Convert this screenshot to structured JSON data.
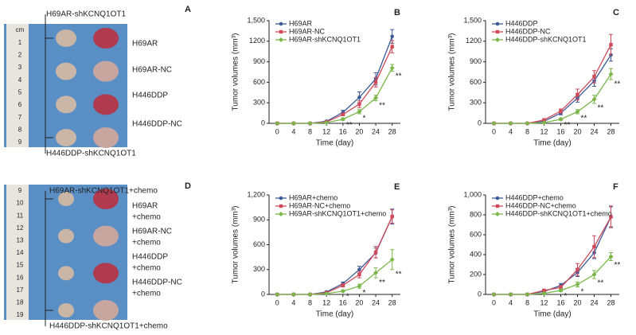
{
  "photos": [
    {
      "panel": "A",
      "top": "H69AR-shKCNQ1OT1",
      "bottom": "H446DDP-shKCNQ1OT1",
      "labels": [
        [
          "H69AR"
        ],
        [
          "H69AR-NC"
        ],
        [
          "H446DDP"
        ],
        [
          "H446DDP-NC"
        ]
      ],
      "ruler": [
        "cm",
        "1",
        "2",
        "3",
        "4",
        "5",
        "6",
        "7",
        "8",
        "9"
      ]
    },
    {
      "panel": "D",
      "top": "H69AR-shKCNQ1OT1+chemo",
      "bottom": "H446DDP-shKCNQ1OT1+chemo",
      "labels": [
        [
          "H69AR",
          "+chemo"
        ],
        [
          "H69AR-NC",
          "+chemo"
        ],
        [
          "H446DDP",
          "+chemo"
        ],
        [
          "H446DDP-NC",
          "+chemo"
        ]
      ],
      "ruler": [
        "9",
        "10",
        "11",
        "12",
        "13",
        "14",
        "15",
        "16",
        "17",
        "18",
        "19"
      ]
    }
  ],
  "chart_data": [
    {
      "type": "line",
      "panel": "B",
      "xlabel": "Time (day)",
      "ylabel": "Tumor volumes (mm³)",
      "x": [
        0,
        4,
        8,
        12,
        16,
        20,
        24,
        28
      ],
      "xlim": [
        -2,
        30
      ],
      "xticks": [
        0,
        4,
        8,
        12,
        16,
        20,
        24,
        28
      ],
      "ylim": [
        0,
        1500
      ],
      "yticks": [
        0,
        300,
        600,
        900,
        1200,
        {
          "value": 1500,
          "label": "1,500"
        }
      ],
      "series": [
        {
          "name": "H69AR",
          "color": "#3d5a98",
          "values": [
            0,
            0,
            0,
            30,
            160,
            380,
            650,
            1270
          ],
          "errors": [
            0,
            0,
            0,
            10,
            30,
            80,
            90,
            100
          ]
        },
        {
          "name": "H69AR-NC",
          "color": "#d04a5a",
          "values": [
            0,
            0,
            0,
            20,
            130,
            280,
            600,
            1120
          ],
          "errors": [
            0,
            0,
            0,
            10,
            20,
            50,
            70,
            90
          ]
        },
        {
          "name": "H69AR-shKCNQ1OT1",
          "color": "#7ab648",
          "values": [
            0,
            0,
            0,
            10,
            60,
            170,
            370,
            810
          ],
          "errors": [
            0,
            0,
            0,
            5,
            15,
            30,
            40,
            50
          ]
        }
      ],
      "annotations": [
        {
          "x": 16,
          "text": "**"
        },
        {
          "x": 20,
          "text": "*"
        },
        {
          "x": 24,
          "text": "**"
        },
        {
          "x": 28,
          "text": "**"
        }
      ]
    },
    {
      "type": "line",
      "panel": "C",
      "xlabel": "Time (day)",
      "ylabel": "Tumor volumes (mm³)",
      "x": [
        0,
        4,
        8,
        12,
        16,
        20,
        24,
        28
      ],
      "xlim": [
        -2,
        30
      ],
      "xticks": [
        0,
        4,
        8,
        12,
        16,
        20,
        24,
        28
      ],
      "ylim": [
        0,
        1500
      ],
      "yticks": [
        0,
        300,
        600,
        900,
        1200,
        {
          "value": 1500,
          "label": "1,500"
        }
      ],
      "series": [
        {
          "name": "H446DDP",
          "color": "#3d5a98",
          "values": [
            0,
            0,
            0,
            30,
            150,
            370,
            620,
            1000
          ],
          "errors": [
            0,
            0,
            0,
            10,
            25,
            60,
            80,
            90
          ]
        },
        {
          "name": "H446DDP-NC",
          "color": "#d04a5a",
          "values": [
            0,
            0,
            0,
            50,
            180,
            420,
            680,
            1150
          ],
          "errors": [
            0,
            0,
            0,
            10,
            30,
            80,
            90,
            150
          ]
        },
        {
          "name": "H446DDP-shKCNQ1OT1",
          "color": "#7ab648",
          "values": [
            0,
            0,
            0,
            10,
            60,
            170,
            350,
            720
          ],
          "errors": [
            0,
            0,
            0,
            5,
            15,
            30,
            60,
            80
          ]
        }
      ],
      "annotations": [
        {
          "x": 16,
          "text": "**"
        },
        {
          "x": 20,
          "text": "**"
        },
        {
          "x": 24,
          "text": "**"
        },
        {
          "x": 28,
          "text": "**"
        }
      ]
    },
    {
      "type": "line",
      "panel": "E",
      "xlabel": "Time (day)",
      "ylabel": "Tumor volumes (mm³)",
      "x": [
        0,
        4,
        8,
        12,
        16,
        20,
        24,
        28
      ],
      "xlim": [
        -2,
        30
      ],
      "xticks": [
        0,
        4,
        8,
        12,
        16,
        20,
        24,
        28
      ],
      "ylim": [
        0,
        1200
      ],
      "yticks": [
        0,
        300,
        600,
        900,
        {
          "value": 1200,
          "label": "1,200"
        }
      ],
      "series": [
        {
          "name": "H69AR+chemo",
          "color": "#3d5a98",
          "values": [
            0,
            0,
            0,
            30,
            130,
            300,
            500,
            940
          ],
          "errors": [
            0,
            0,
            0,
            10,
            20,
            40,
            60,
            90
          ]
        },
        {
          "name": "H69AR-NC+chemo",
          "color": "#d04a5a",
          "values": [
            0,
            0,
            0,
            20,
            110,
            240,
            510,
            940
          ],
          "errors": [
            0,
            0,
            0,
            10,
            20,
            40,
            70,
            80
          ]
        },
        {
          "name": "H69AR-shKCNQ1OT1+chemo",
          "color": "#7ab648",
          "values": [
            0,
            0,
            0,
            10,
            40,
            100,
            260,
            420
          ],
          "errors": [
            0,
            0,
            0,
            5,
            10,
            25,
            60,
            120
          ]
        }
      ],
      "annotations": [
        {
          "x": 16,
          "text": "*"
        },
        {
          "x": 20,
          "text": "*"
        },
        {
          "x": 24,
          "text": "**"
        },
        {
          "x": 28,
          "text": "**"
        }
      ]
    },
    {
      "type": "line",
      "panel": "F",
      "xlabel": "Time (day)",
      "ylabel": "Tumor volumes (mm³)",
      "x": [
        0,
        4,
        8,
        12,
        16,
        20,
        24,
        28
      ],
      "xlim": [
        -2,
        30
      ],
      "xticks": [
        0,
        4,
        8,
        12,
        16,
        20,
        24,
        28
      ],
      "ylim": [
        0,
        1000
      ],
      "yticks": [
        0,
        200,
        400,
        600,
        800,
        {
          "value": 1000,
          "label": "1,000"
        }
      ],
      "series": [
        {
          "name": "H446DDP+chemo",
          "color": "#3d5a98",
          "values": [
            0,
            0,
            0,
            30,
            90,
            220,
            420,
            780
          ],
          "errors": [
            0,
            0,
            0,
            10,
            20,
            40,
            60,
            100
          ]
        },
        {
          "name": "H446DDP-NC+chemo",
          "color": "#d04a5a",
          "values": [
            0,
            0,
            0,
            40,
            70,
            250,
            480,
            780
          ],
          "errors": [
            0,
            0,
            0,
            10,
            20,
            60,
            110,
            110
          ]
        },
        {
          "name": "H446DDP-shKCNQ1OT1+chemo",
          "color": "#7ab648",
          "values": [
            0,
            0,
            0,
            10,
            40,
            100,
            200,
            380
          ],
          "errors": [
            0,
            0,
            0,
            5,
            10,
            25,
            40,
            40
          ]
        }
      ],
      "annotations": [
        {
          "x": 16,
          "text": "*"
        },
        {
          "x": 20,
          "text": "*"
        },
        {
          "x": 24,
          "text": "**"
        },
        {
          "x": 28,
          "text": "**"
        }
      ]
    }
  ]
}
